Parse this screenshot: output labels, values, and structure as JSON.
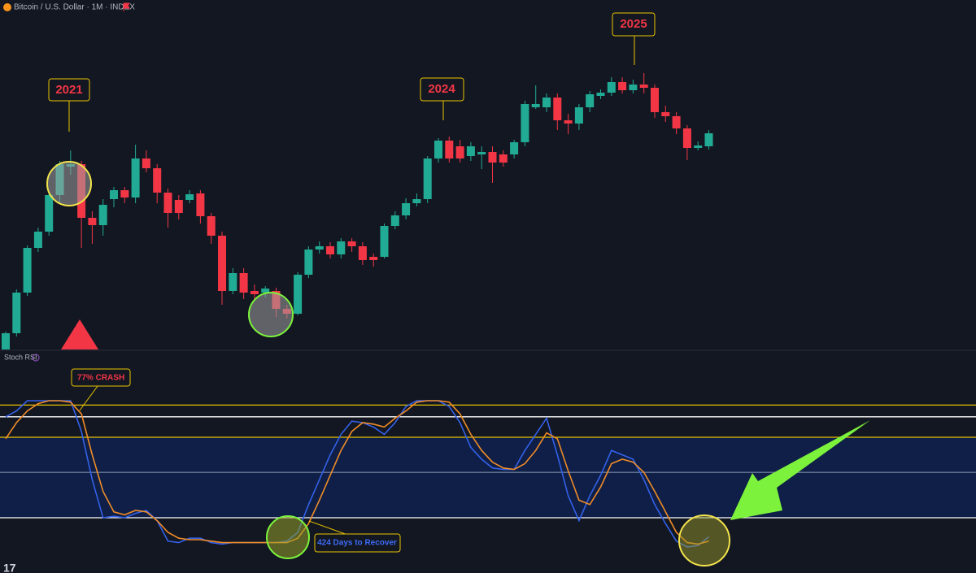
{
  "chart_data": [
    {
      "type": "candlestick",
      "title": "Bitcoin / U.S. Dollar · 1M · INDEX",
      "up_color": "#22ab94",
      "down_color": "#f23645",
      "ylim": [
        0,
        430
      ],
      "annotations": [
        "2021",
        "2024",
        "2025"
      ],
      "open": [
        0,
        20,
        70,
        125,
        145,
        190,
        225,
        228,
        162,
        153,
        185,
        196,
        187,
        235,
        223,
        193,
        184,
        184,
        192,
        164,
        140,
        72,
        94,
        72,
        70,
        72,
        50,
        44,
        92,
        123,
        127,
        117,
        133,
        127,
        114,
        114,
        152,
        165,
        180,
        185,
        235,
        257,
        250,
        238,
        240,
        243,
        240,
        240,
        255,
        298,
        298,
        310,
        282,
        278,
        298,
        312,
        316,
        329,
        319,
        326,
        322,
        292,
        287,
        272,
        248,
        250
      ],
      "high": [
        22,
        74,
        128,
        150,
        194,
        232,
        245,
        232,
        170,
        185,
        200,
        200,
        252,
        245,
        228,
        198,
        190,
        196,
        196,
        168,
        145,
        100,
        100,
        80,
        78,
        76,
        55,
        95,
        127,
        133,
        132,
        137,
        137,
        132,
        118,
        155,
        170,
        186,
        192,
        238,
        260,
        262,
        258,
        255,
        250,
        250,
        245,
        258,
        306,
        325,
        315,
        315,
        290,
        302,
        318,
        320,
        335,
        335,
        332,
        340,
        326,
        300,
        292,
        276,
        256,
        270
      ],
      "low": [
        0,
        16,
        66,
        120,
        140,
        180,
        215,
        125,
        130,
        140,
        175,
        180,
        180,
        218,
        180,
        150,
        160,
        180,
        155,
        130,
        55,
        68,
        62,
        60,
        64,
        40,
        38,
        42,
        88,
        118,
        112,
        112,
        120,
        104,
        102,
        112,
        148,
        160,
        176,
        180,
        230,
        230,
        230,
        232,
        222,
        205,
        225,
        235,
        250,
        296,
        292,
        270,
        265,
        270,
        292,
        308,
        312,
        315,
        315,
        315,
        285,
        280,
        265,
        233,
        245,
        246
      ],
      "close": [
        20,
        70,
        125,
        145,
        190,
        228,
        228,
        162,
        153,
        178,
        196,
        187,
        235,
        223,
        193,
        168,
        168,
        191,
        164,
        140,
        72,
        94,
        70,
        68,
        75,
        50,
        44,
        92,
        123,
        127,
        117,
        133,
        127,
        110,
        110,
        152,
        165,
        180,
        185,
        235,
        257,
        235,
        235,
        250,
        243,
        230,
        230,
        255,
        302,
        302,
        310,
        282,
        278,
        298,
        314,
        316,
        329,
        319,
        326,
        322,
        292,
        287,
        272,
        248,
        251,
        266
      ]
    },
    {
      "type": "line",
      "title": "Stoch RSI",
      "ylim": [
        0,
        100
      ],
      "annotations": [
        "77% CRASH",
        "424 Days to Recover"
      ],
      "levels": [
        {
          "value": 97,
          "color": "#e8c400"
        },
        {
          "value": 89,
          "color": "#ffffff"
        },
        {
          "value": 75,
          "color": "#e8c400"
        },
        {
          "value": 51,
          "color": "#6a7a99"
        },
        {
          "value": 20,
          "color": "#ffffff"
        }
      ],
      "band": {
        "from": 20,
        "to": 75,
        "color": "#0f1f47"
      },
      "series": [
        {
          "color": "#3461e8",
          "values": [
            89,
            93,
            100,
            100,
            100,
            100,
            100,
            79,
            46,
            20,
            21,
            20,
            23,
            25,
            18,
            4,
            3,
            6,
            6,
            3,
            2,
            3,
            3,
            3,
            3,
            3,
            4,
            10,
            29,
            46,
            63,
            77,
            86,
            85,
            82,
            77,
            85,
            96,
            100,
            100,
            100,
            96,
            85,
            68,
            60,
            54,
            53,
            53,
            66,
            77,
            88,
            63,
            35,
            18,
            35,
            49,
            66,
            63,
            60,
            46,
            29,
            16,
            4,
            0,
            1,
            7
          ]
        },
        {
          "color": "#f08c28",
          "values": [
            74,
            85,
            93,
            98,
            100,
            100,
            99,
            91,
            63,
            38,
            24,
            22,
            25,
            24,
            18,
            10,
            6,
            5,
            5,
            4,
            3,
            3,
            3,
            3,
            3,
            3,
            3,
            6,
            16,
            32,
            49,
            66,
            79,
            85,
            84,
            82,
            88,
            93,
            99,
            100,
            100,
            99,
            91,
            77,
            66,
            58,
            54,
            53,
            57,
            66,
            78,
            74,
            52,
            32,
            29,
            41,
            57,
            60,
            58,
            51,
            38,
            24,
            10,
            3,
            2,
            4
          ]
        }
      ]
    }
  ]
}
